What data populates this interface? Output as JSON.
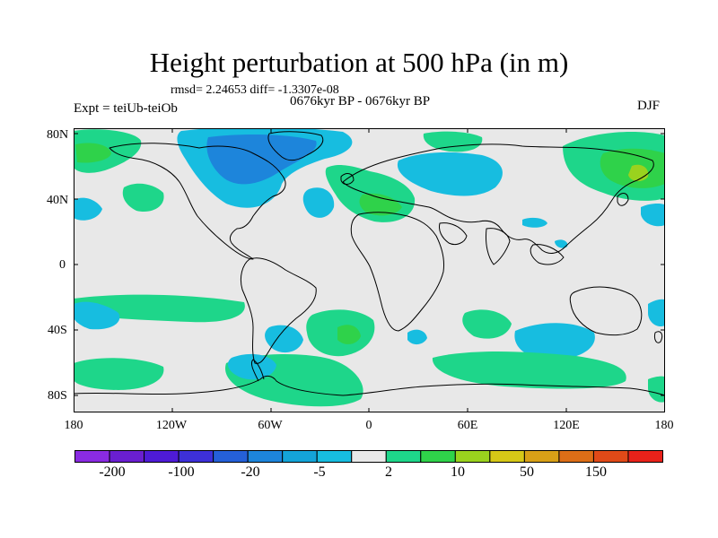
{
  "title": "Height perturbation at 500 hPa (in m)",
  "stats": {
    "rmsd_text": "rmsd= 2.24653 diff= -1.3307e-08"
  },
  "period": "0676kyr BP - 0676kyr BP",
  "experiment": "Expt = teiUb-teiOb",
  "season": "DJF",
  "latitude_labels": [
    "80N",
    "40N",
    "0",
    "40S",
    "80S"
  ],
  "longitude_labels": [
    "180",
    "120W",
    "60W",
    "0",
    "60E",
    "120E",
    "180"
  ],
  "colorbar": {
    "colors": [
      "#8a2be2",
      "#6a1fd0",
      "#4e1bd6",
      "#3d30d8",
      "#2560d8",
      "#1d85db",
      "#14a4d8",
      "#17bde0",
      "#e8e8e8",
      "#1ed68a",
      "#2fd24a",
      "#9ad21e",
      "#d6c817",
      "#d8a017",
      "#dc6e17",
      "#e04a18",
      "#e8221a"
    ],
    "labels": [
      "-200",
      "-100",
      "-20",
      "-5",
      "2",
      "10",
      "50",
      "150"
    ]
  },
  "palette": {
    "background": "#e8e8e8",
    "negative_light": "#17bde0",
    "negative_mid": "#1d85db",
    "positive_light": "#1ed68a",
    "positive_mid": "#2fd24a",
    "positive_strong": "#9ad21e"
  }
}
